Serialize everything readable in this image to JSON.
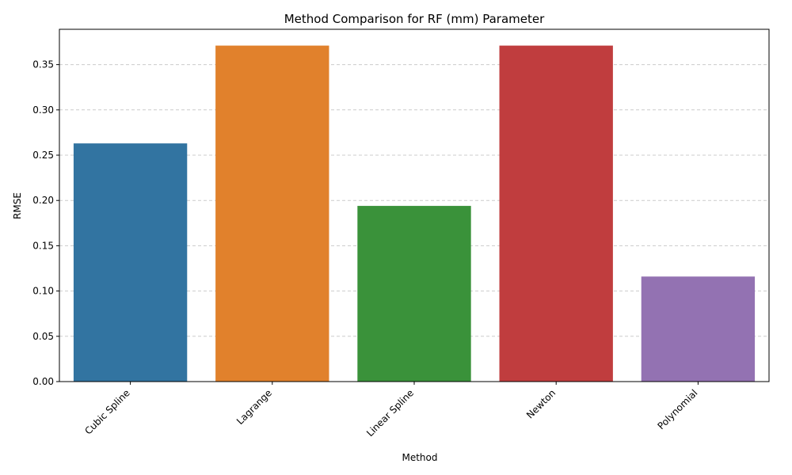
{
  "chart_data": {
    "type": "bar",
    "title": "Method Comparison for RF (mm) Parameter",
    "xlabel": "Method",
    "ylabel": "RMSE",
    "categories": [
      "Cubic Spline",
      "Lagrange",
      "Linear Spline",
      "Newton",
      "Polynomial"
    ],
    "values": [
      0.263,
      0.371,
      0.194,
      0.371,
      0.116
    ],
    "colors": [
      "#3274a1",
      "#e1812c",
      "#3a923a",
      "#c03d3e",
      "#9372b2"
    ],
    "ylim": [
      0,
      0.389
    ],
    "yticks": [
      "0.00",
      "0.05",
      "0.10",
      "0.15",
      "0.20",
      "0.25",
      "0.30",
      "0.35"
    ],
    "ytick_values": [
      0,
      0.05,
      0.1,
      0.15,
      0.2,
      0.25,
      0.3,
      0.35
    ],
    "grid": "y-dashed",
    "grid_color": "#cccccc",
    "xtick_rotation_deg": 45
  }
}
